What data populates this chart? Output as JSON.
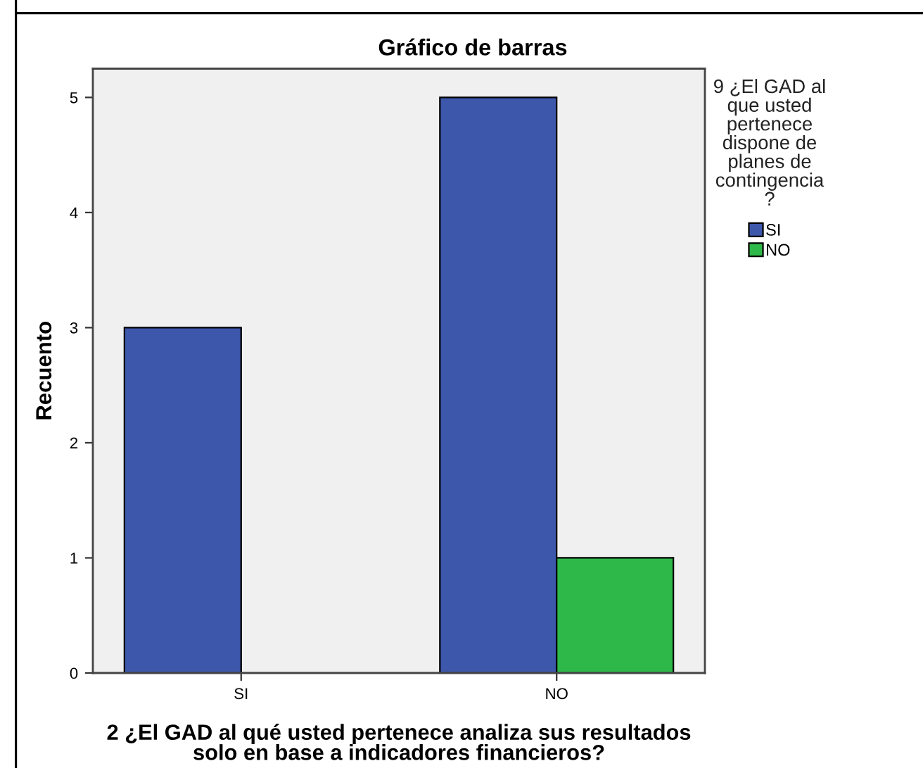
{
  "chart_data": {
    "type": "bar",
    "title": "Gráfico de barras",
    "xlabel": "2 ¿El GAD al qué usted pertenece analiza sus resultados\nsolo en base a indicadores financieros?",
    "ylabel": "Recuento",
    "legend_title": "9 ¿El GAD al\nque usted\npertenece\ndispone de\nplanes de\ncontingencia\n?",
    "categories": [
      "SI",
      "NO"
    ],
    "series": [
      {
        "name": "SI",
        "color": "#3d57ab",
        "values": [
          3,
          5
        ]
      },
      {
        "name": "NO",
        "color": "#2fb84a",
        "values": [
          0,
          1
        ]
      }
    ],
    "ylim": [
      0,
      5.25
    ],
    "yticks": [
      0,
      1,
      2,
      3,
      4,
      5
    ],
    "grid": false,
    "legend": "top right"
  }
}
